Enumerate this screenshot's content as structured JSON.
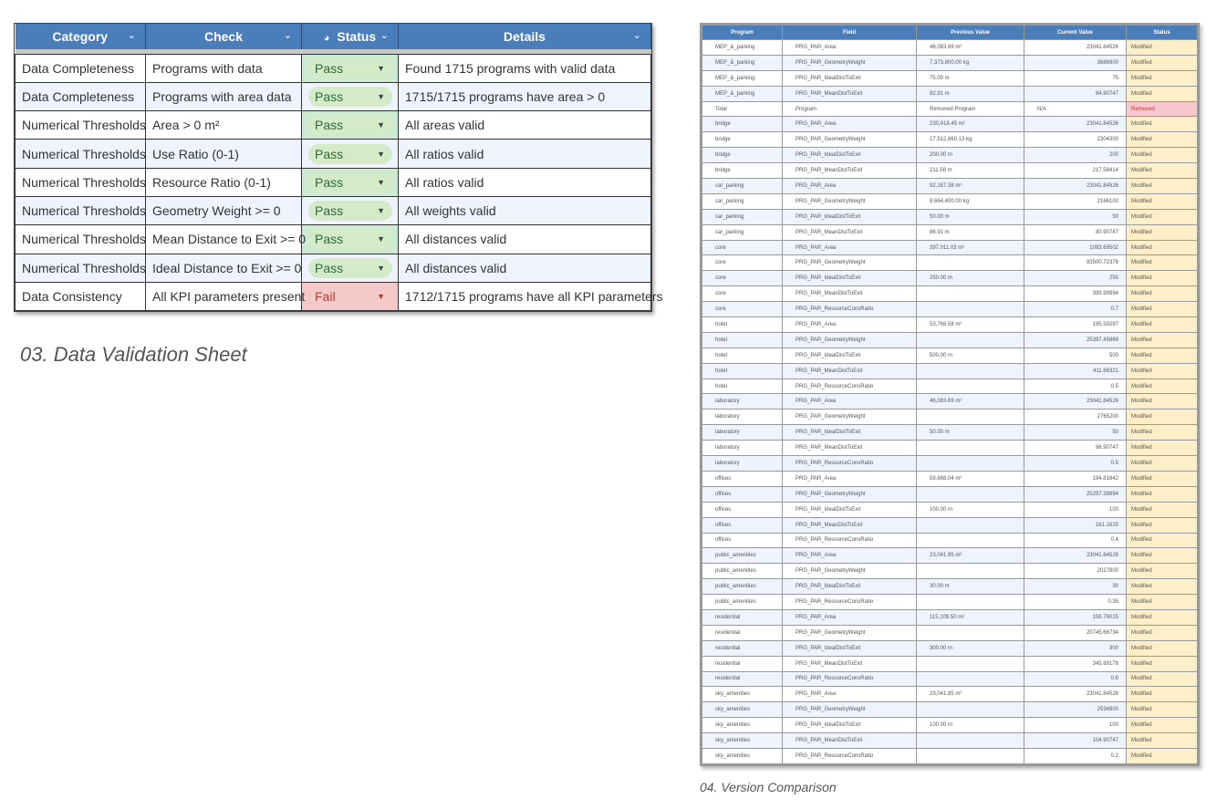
{
  "validation": {
    "headers": [
      "Category",
      "Check",
      "Status",
      "Details"
    ],
    "rows": [
      [
        "Data Completeness",
        "Programs with data",
        "Pass",
        "Found 1715 programs with valid data"
      ],
      [
        "Data Completeness",
        "Programs with area data",
        "Pass",
        "1715/1715 programs have area > 0"
      ],
      [
        "Numerical Thresholds",
        "Area > 0 m²",
        "Pass",
        "All areas valid"
      ],
      [
        "Numerical Thresholds",
        "Use Ratio (0-1)",
        "Pass",
        "All ratios valid"
      ],
      [
        "Numerical Thresholds",
        "Resource Ratio (0-1)",
        "Pass",
        "All ratios valid"
      ],
      [
        "Numerical Thresholds",
        "Geometry Weight >= 0",
        "Pass",
        "All weights valid"
      ],
      [
        "Numerical Thresholds",
        "Mean Distance to Exit >= 0",
        "Pass",
        "All distances valid"
      ],
      [
        "Numerical Thresholds",
        "Ideal Distance to Exit >= 0",
        "Pass",
        "All distances valid"
      ],
      [
        "Data Consistency",
        "All KPI parameters present",
        "Fail",
        "1712/1715 programs have all KPI parameters"
      ]
    ],
    "caption": "03. Data Validation Sheet",
    "colors": {
      "header": "#4a7ebb",
      "pass": "#cdebd0",
      "fail": "#f6c7c8"
    }
  },
  "comparison": {
    "headers": [
      "Program",
      "Field",
      "Previous Value",
      "Current Value",
      "Status"
    ],
    "rows": [
      [
        "MEP_&_parking",
        "PRG_PAR_Area",
        "46,083.69 m²",
        "23041.84526",
        "Modified"
      ],
      [
        "MEP_&_parking",
        "PRG_PAR_GeometryWeight",
        "7,373,800.00 kg",
        "3686900",
        "Modified"
      ],
      [
        "MEP_&_parking",
        "PRG_PAR_IdealDistToExit",
        "75.00 m",
        "75",
        "Modified"
      ],
      [
        "MEP_&_parking",
        "PRG_PAR_MeanDistToExit",
        "82.91 m",
        "84.90747",
        "Modified"
      ],
      [
        "Total",
        "Program",
        "Removed Program",
        "N/A",
        "Removed"
      ],
      [
        "bridge",
        "PRG_PAR_Area",
        "230,418.45 m²",
        "23041.84526",
        "Modified"
      ],
      [
        "bridge",
        "PRG_PAR_GeometryWeight",
        "17,512,860.13 kg",
        "2304300",
        "Modified"
      ],
      [
        "bridge",
        "PRG_PAR_IdealDistToExit",
        "200.00 m",
        "200",
        "Modified"
      ],
      [
        "bridge",
        "PRG_PAR_MeanDistToExit",
        "211.58 m",
        "217.58414",
        "Modified"
      ],
      [
        "car_parking",
        "PRG_PAR_Area",
        "92,167.38 m²",
        "23041.84526",
        "Modified"
      ],
      [
        "car_parking",
        "PRG_PAR_GeometryWeight",
        "8,664,400.00 kg",
        "2166100",
        "Modified"
      ],
      [
        "car_parking",
        "PRG_PAR_IdealDistToExit",
        "50.00 m",
        "50",
        "Modified"
      ],
      [
        "car_parking",
        "PRG_PAR_MeanDistToExit",
        "86.91 m",
        "80.90747",
        "Modified"
      ],
      [
        "core",
        "PRG_PAR_Area",
        "397,011.03 m²",
        "1093.69502",
        "Modified"
      ],
      [
        "core",
        "PRG_PAR_GeometryWeight",
        "",
        "83500.72378",
        "Modified"
      ],
      [
        "core",
        "PRG_PAR_IdealDistToExit",
        "250.00 m",
        "250",
        "Modified"
      ],
      [
        "core",
        "PRG_PAR_MeanDistToExit",
        "",
        "399.99994",
        "Modified"
      ],
      [
        "core",
        "PRG_PAR_ResourceConsRatio",
        "",
        "0.7",
        "Modified"
      ],
      [
        "hotel",
        "PRG_PAR_Area",
        "53,766.58 m²",
        "195.59297",
        "Modified"
      ],
      [
        "hotel",
        "PRG_PAR_GeometryWeight",
        "",
        "25397.45869",
        "Modified"
      ],
      [
        "hotel",
        "PRG_PAR_IdealDistToExit",
        "500.00 m",
        "500",
        "Modified"
      ],
      [
        "hotel",
        "PRG_PAR_MeanDistToExit",
        "",
        "411.66321",
        "Modified"
      ],
      [
        "hotel",
        "PRG_PAR_ResourceConsRatio",
        "",
        "0.5",
        "Modified"
      ],
      [
        "laboratory",
        "PRG_PAR_Area",
        "46,083.69 m²",
        "23041.84526",
        "Modified"
      ],
      [
        "laboratory",
        "PRG_PAR_GeometryWeight",
        "",
        "2765200",
        "Modified"
      ],
      [
        "laboratory",
        "PRG_PAR_IdealDistToExit",
        "50.00 m",
        "50",
        "Modified"
      ],
      [
        "laboratory",
        "PRG_PAR_MeanDistToExit",
        "",
        "96.90747",
        "Modified"
      ],
      [
        "laboratory",
        "PRG_PAR_ResourceConsRatio",
        "",
        "0.5",
        "Modified"
      ],
      [
        "offices",
        "PRG_PAR_Area",
        "59,668.04 m²",
        "194.81642",
        "Modified"
      ],
      [
        "offices",
        "PRG_PAR_GeometryWeight",
        "",
        "25297.39894",
        "Modified"
      ],
      [
        "offices",
        "PRG_PAR_IdealDistToExit",
        "100.00 m",
        "100",
        "Modified"
      ],
      [
        "offices",
        "PRG_PAR_MeanDistToExit",
        "",
        "161.1615",
        "Modified"
      ],
      [
        "offices",
        "PRG_PAR_ResourceConsRatio",
        "",
        "0.4",
        "Modified"
      ],
      [
        "public_amenities",
        "PRG_PAR_Area",
        "23,041.85 m²",
        "23041.84526",
        "Modified"
      ],
      [
        "public_amenities",
        "PRG_PAR_GeometryWeight",
        "",
        "2027800",
        "Modified"
      ],
      [
        "public_amenities",
        "PRG_PAR_IdealDistToExit",
        "30.00 m",
        "30",
        "Modified"
      ],
      [
        "public_amenities",
        "PRG_PAR_ResourceConsRatio",
        "",
        "0.35",
        "Modified"
      ],
      [
        "residential",
        "PRG_PAR_Area",
        "115,109.50 m²",
        "159.76015",
        "Modified"
      ],
      [
        "residential",
        "PRG_PAR_GeometryWeight",
        "",
        "20745.66734",
        "Modified"
      ],
      [
        "residential",
        "PRG_PAR_IdealDistToExit",
        "300.00 m",
        "300",
        "Modified"
      ],
      [
        "residential",
        "PRG_PAR_MeanDistToExit",
        "",
        "345.69178",
        "Modified"
      ],
      [
        "residential",
        "PRG_PAR_ResourceConsRatio",
        "",
        "0.6",
        "Modified"
      ],
      [
        "sky_amenities",
        "PRG_PAR_Area",
        "23,041.85 m²",
        "23041.84526",
        "Modified"
      ],
      [
        "sky_amenities",
        "PRG_PAR_GeometryWeight",
        "",
        "2534800",
        "Modified"
      ],
      [
        "sky_amenities",
        "PRG_PAR_IdealDistToExit",
        "100.00 m",
        "100",
        "Modified"
      ],
      [
        "sky_amenities",
        "PRG_PAR_MeanDistToExit",
        "",
        "104.90747",
        "Modified"
      ],
      [
        "sky_amenities",
        "PRG_PAR_ResourceConsRatio",
        "",
        "0.2",
        "Modified"
      ]
    ],
    "caption": "04. Version Comparison",
    "colors": {
      "modified": "#fdf0c8",
      "removed": "#f8c7cd"
    }
  }
}
